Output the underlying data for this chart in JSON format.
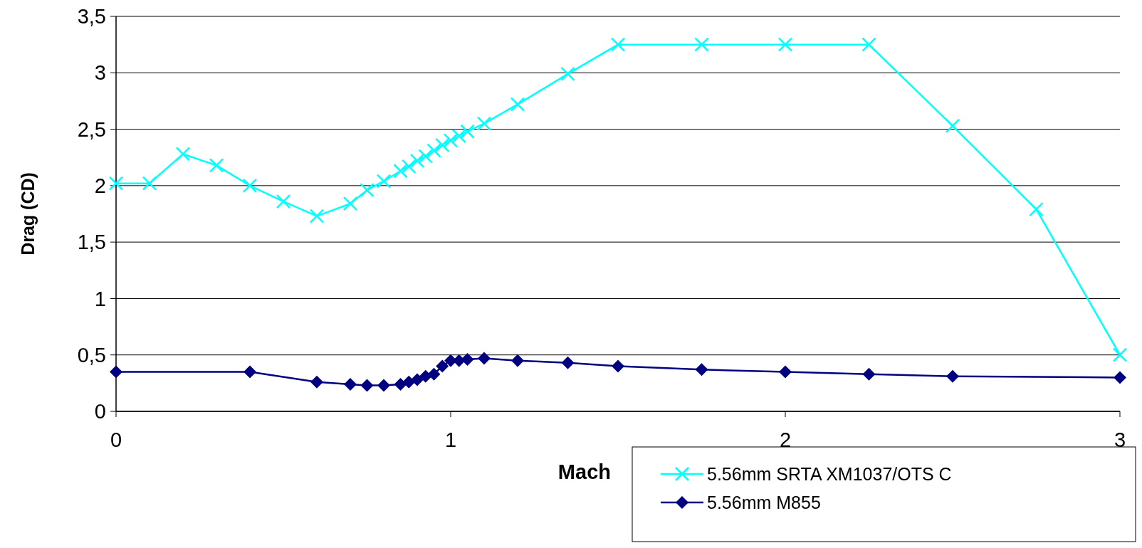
{
  "chart_data": {
    "type": "line",
    "xlabel": "Mach",
    "ylabel": "Drag (CD)",
    "xlim": [
      0,
      3
    ],
    "ylim": [
      0,
      3.5
    ],
    "xticks": [
      0,
      1,
      2,
      3
    ],
    "yticks": [
      {
        "value": 0,
        "label": "0"
      },
      {
        "value": 0.5,
        "label": "0,5"
      },
      {
        "value": 1,
        "label": "1"
      },
      {
        "value": 1.5,
        "label": "1,5"
      },
      {
        "value": 2,
        "label": "2"
      },
      {
        "value": 2.5,
        "label": "2,5"
      },
      {
        "value": 3,
        "label": "3"
      },
      {
        "value": 3.5,
        "label": "3,5"
      }
    ],
    "grid": "y",
    "legend": "bottom right",
    "line_style": "solid",
    "series": [
      {
        "name": "5.56mm SRTA XM1037/OTS C",
        "color": "#00ffff",
        "marker": "cross",
        "x": [
          0,
          0.1,
          0.2,
          0.3,
          0.4,
          0.5,
          0.6,
          0.7,
          0.75,
          0.8,
          0.85,
          0.875,
          0.9,
          0.925,
          0.95,
          0.975,
          1.0,
          1.025,
          1.05,
          1.1,
          1.2,
          1.35,
          1.5,
          1.75,
          2.0,
          2.25,
          2.5,
          2.75,
          3.0
        ],
        "values": [
          2.02,
          2.02,
          2.28,
          2.18,
          2.0,
          1.86,
          1.73,
          1.84,
          1.96,
          2.04,
          2.13,
          2.17,
          2.22,
          2.26,
          2.31,
          2.36,
          2.4,
          2.44,
          2.48,
          2.55,
          2.72,
          2.99,
          3.25,
          3.25,
          3.25,
          3.25,
          2.53,
          1.79,
          0.5
        ]
      },
      {
        "name": "5.56mm M855",
        "color": "#000080",
        "marker": "diamond",
        "x": [
          0,
          0.4,
          0.6,
          0.7,
          0.75,
          0.8,
          0.85,
          0.875,
          0.9,
          0.925,
          0.95,
          0.975,
          1.0,
          1.025,
          1.05,
          1.1,
          1.2,
          1.35,
          1.5,
          1.75,
          2.0,
          2.25,
          2.5,
          3.0
        ],
        "values": [
          0.35,
          0.35,
          0.26,
          0.24,
          0.23,
          0.23,
          0.24,
          0.26,
          0.28,
          0.31,
          0.33,
          0.4,
          0.45,
          0.45,
          0.46,
          0.47,
          0.45,
          0.43,
          0.4,
          0.37,
          0.35,
          0.33,
          0.31,
          0.3
        ]
      }
    ]
  }
}
